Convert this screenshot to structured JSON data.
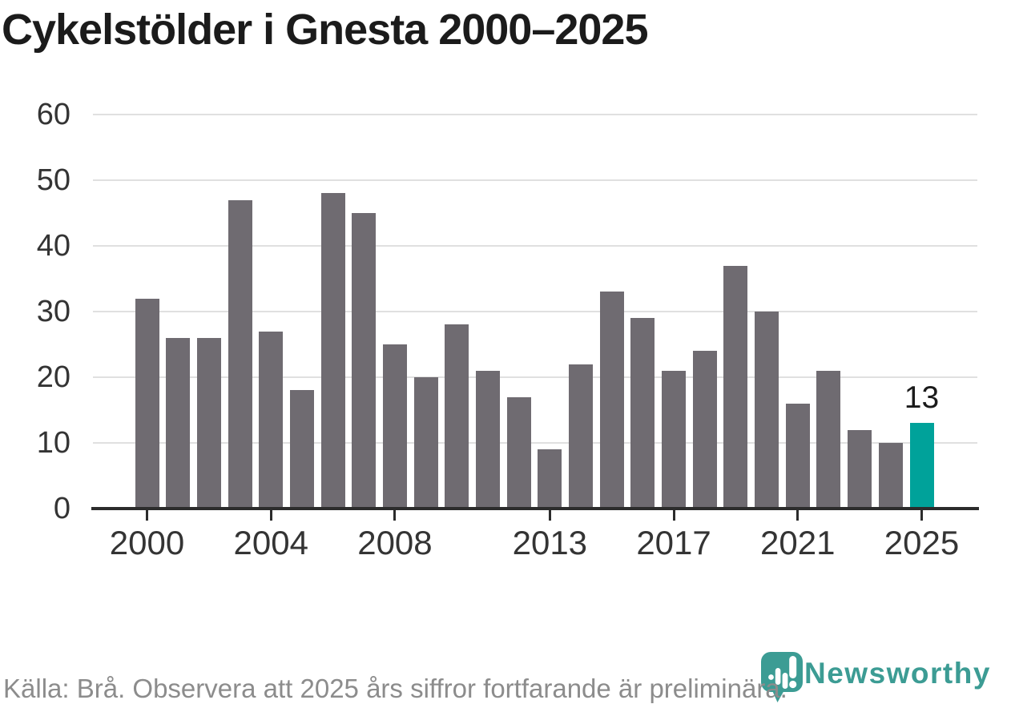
{
  "title": "Cykelstölder i Gnesta 2000–2025",
  "footer": {
    "source_note": "Källa: Brå. Observera att 2025 års siffror fortfarande är preliminära."
  },
  "logo": {
    "wordmark": "Newsworthy",
    "icon": "newsworthy-pin-barchart-icon"
  },
  "colors": {
    "bar": "#6f6b71",
    "highlight_bar": "#00a29a",
    "gridline": "#e0e0e0",
    "axis": "#2c2c2c",
    "title_text": "#1b1b1b",
    "axis_label_text": "#343434",
    "footer_text": "#8c8c8c",
    "logo_teal": "#3c9c94"
  },
  "chart_data": {
    "type": "bar",
    "title": "Cykelstölder i Gnesta 2000–2025",
    "categories": [
      2000,
      2001,
      2002,
      2003,
      2004,
      2005,
      2006,
      2007,
      2008,
      2009,
      2010,
      2011,
      2012,
      2013,
      2014,
      2015,
      2016,
      2017,
      2018,
      2019,
      2020,
      2021,
      2022,
      2023,
      2024,
      2025
    ],
    "values": [
      32,
      26,
      26,
      47,
      27,
      18,
      48,
      45,
      25,
      20,
      28,
      21,
      17,
      9,
      22,
      33,
      29,
      21,
      24,
      37,
      30,
      16,
      21,
      12,
      10,
      13
    ],
    "highlight_index": 25,
    "highlight_label": "13",
    "x_tick_labels": [
      "2000",
      "2004",
      "2008",
      "2013",
      "2017",
      "2021",
      "2025"
    ],
    "y_ticks": [
      0,
      10,
      20,
      30,
      40,
      50,
      60
    ],
    "ylim": [
      0,
      60
    ],
    "xlabel": "",
    "ylabel": "",
    "grid": true,
    "legend": false
  }
}
